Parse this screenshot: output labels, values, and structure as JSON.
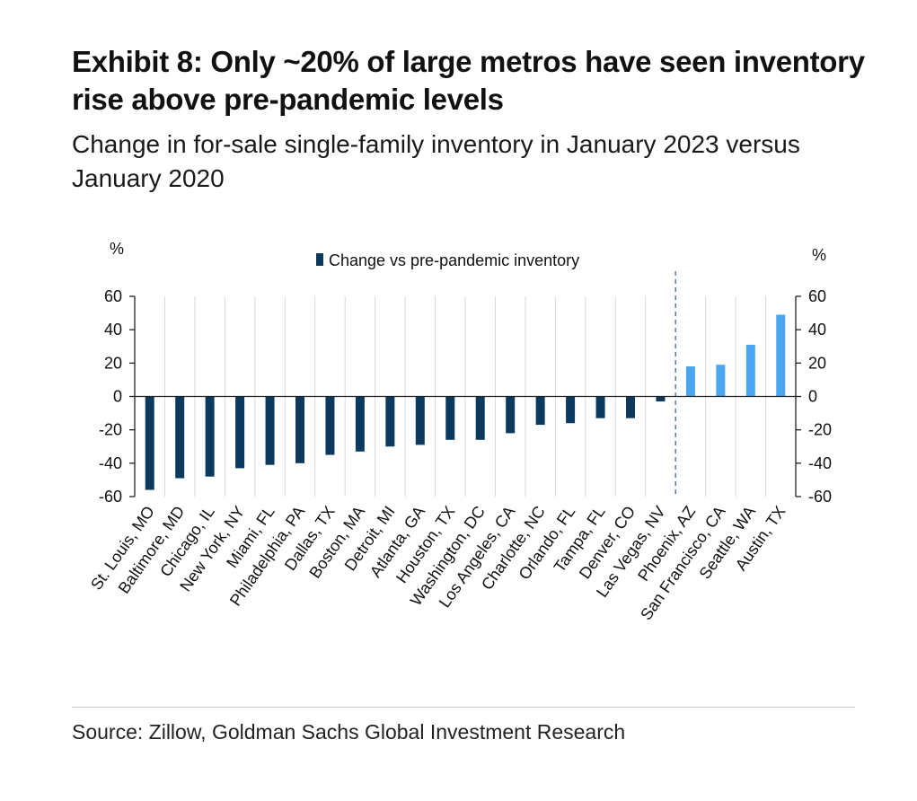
{
  "title": "Exhibit 8: Only ~20% of large metros have seen inventory rise above pre-pandemic levels",
  "subtitle": "Change in for-sale single-family inventory in January 2023 versus January 2020",
  "source": "Source: Zillow, Goldman Sachs Global Investment Research",
  "chart_data": {
    "type": "bar",
    "title": "",
    "xlabel": "",
    "ylabel_left": "%",
    "ylabel_right": "%",
    "ylim": [
      -60,
      60
    ],
    "yticks": [
      60,
      40,
      20,
      0,
      -20,
      -40,
      -60
    ],
    "grid": "vertical",
    "legend": {
      "position": "top-center",
      "label": "Change vs pre-pandemic inventory"
    },
    "categories": [
      "St. Louis, MO",
      "Baltimore, MD",
      "Chicago, IL",
      "New York, NY",
      "Miami, FL",
      "Philadelphia, PA",
      "Dallas, TX",
      "Boston, MA",
      "Detroit, MI",
      "Atlanta, GA",
      "Houston, TX",
      "Washington, DC",
      "Los Angeles, CA",
      "Charlotte, NC",
      "Orlando, FL",
      "Tampa, FL",
      "Denver, CO",
      "Las Vegas, NV",
      "Phoenix, AZ",
      "San Francisco, CA",
      "Seattle, WA",
      "Austin, TX"
    ],
    "series": [
      {
        "name": "Change vs pre-pandemic inventory",
        "values": [
          -56,
          -49,
          -48,
          -43,
          -41,
          -40,
          -35,
          -33,
          -30,
          -29,
          -26,
          -26,
          -22,
          -17,
          -16,
          -13,
          -13,
          -3,
          18,
          19,
          31,
          49
        ]
      }
    ],
    "colors": {
      "negative": "#0b3a5e",
      "positive": "#4aa6f0",
      "divider": "#2d5f8a",
      "grid": "#d9d9d9",
      "axis": "#222222"
    },
    "divider_after_index": 17
  }
}
